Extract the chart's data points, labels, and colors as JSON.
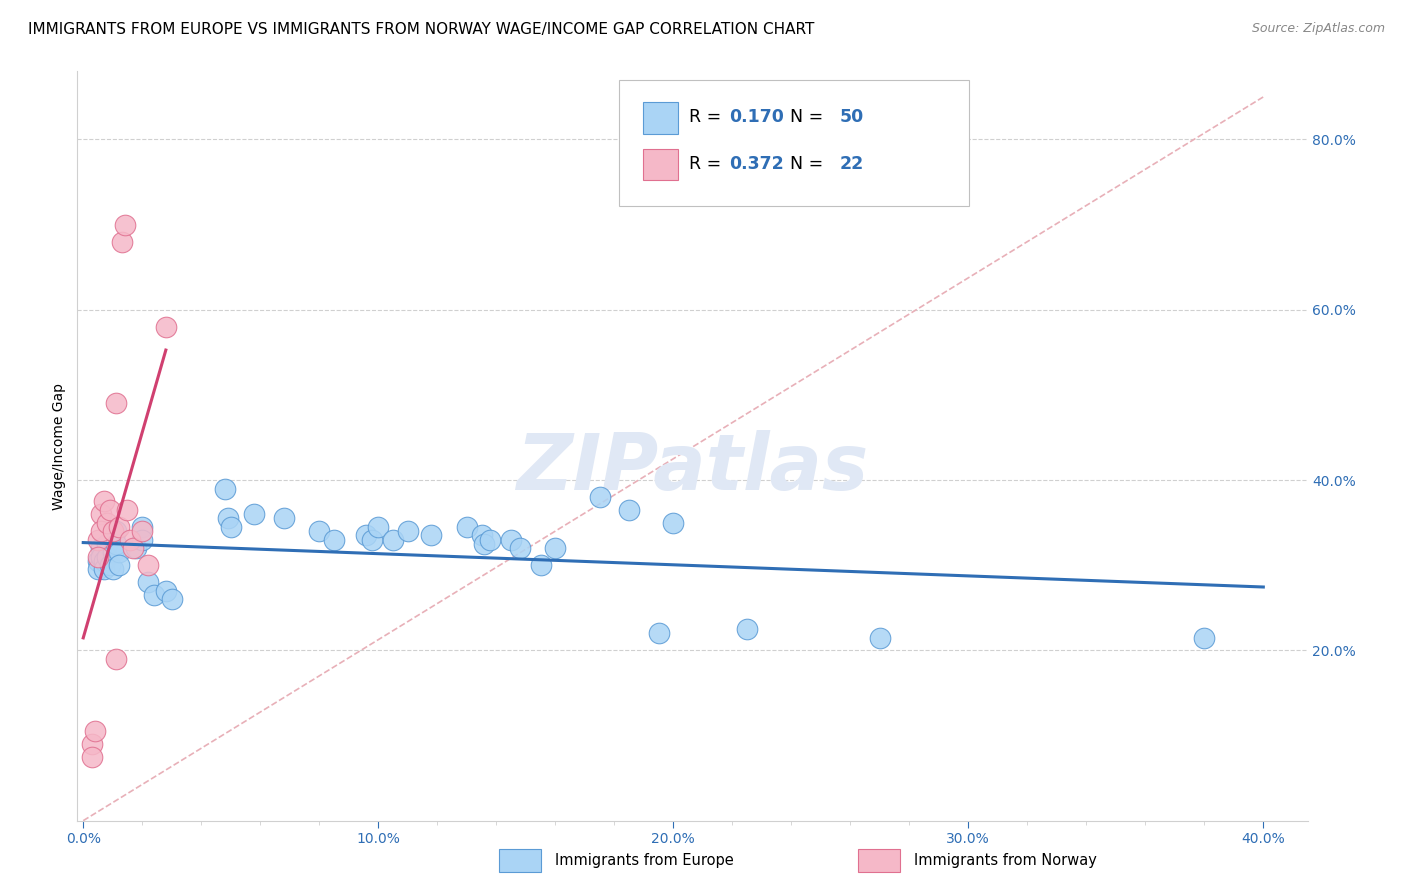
{
  "title": "IMMIGRANTS FROM EUROPE VS IMMIGRANTS FROM NORWAY WAGE/INCOME GAP CORRELATION CHART",
  "source": "Source: ZipAtlas.com",
  "ylabel": "Wage/Income Gap",
  "x_tick_labels": [
    "0.0%",
    "",
    "",
    "",
    "",
    "10.0%",
    "",
    "",
    "",
    "",
    "20.0%",
    "",
    "",
    "",
    "",
    "30.0%",
    "",
    "",
    "",
    "",
    "40.0%"
  ],
  "x_tick_values": [
    0.0,
    0.02,
    0.04,
    0.06,
    0.08,
    0.1,
    0.12,
    0.14,
    0.16,
    0.18,
    0.2,
    0.22,
    0.24,
    0.26,
    0.28,
    0.3,
    0.32,
    0.34,
    0.36,
    0.38,
    0.4
  ],
  "y_tick_labels": [
    "80.0%",
    "60.0%",
    "40.0%",
    "20.0%"
  ],
  "y_tick_values": [
    0.8,
    0.6,
    0.4,
    0.2
  ],
  "xlim": [
    -0.002,
    0.415
  ],
  "ylim": [
    0.0,
    0.88
  ],
  "legend_europe": "Immigrants from Europe",
  "legend_norway": "Immigrants from Norway",
  "europe_R": "0.170",
  "europe_N": "50",
  "norway_R": "0.372",
  "norway_N": "22",
  "europe_color": "#aad4f5",
  "norway_color": "#f5b8c8",
  "europe_edge_color": "#5b9bd5",
  "norway_edge_color": "#e07090",
  "europe_line_color": "#2f6eb5",
  "norway_line_color": "#d04070",
  "diag_color": "#e8b0b8",
  "grid_color": "#d0d0d0",
  "watermark_color": "#e0e8f5",
  "text_blue": "#2f6eb5",
  "text_pink": "#d04070",
  "watermark": "ZIPatlas",
  "europe_x": [
    0.005,
    0.005,
    0.006,
    0.006,
    0.007,
    0.007,
    0.008,
    0.008,
    0.009,
    0.01,
    0.01,
    0.011,
    0.011,
    0.012,
    0.012,
    0.018,
    0.02,
    0.02,
    0.022,
    0.024,
    0.028,
    0.03,
    0.048,
    0.049,
    0.05,
    0.058,
    0.068,
    0.08,
    0.085,
    0.096,
    0.098,
    0.1,
    0.105,
    0.11,
    0.118,
    0.13,
    0.135,
    0.136,
    0.138,
    0.145,
    0.148,
    0.155,
    0.16,
    0.175,
    0.185,
    0.195,
    0.2,
    0.225,
    0.27,
    0.38
  ],
  "europe_y": [
    0.305,
    0.295,
    0.32,
    0.31,
    0.305,
    0.295,
    0.325,
    0.31,
    0.3,
    0.315,
    0.295,
    0.34,
    0.325,
    0.315,
    0.3,
    0.32,
    0.345,
    0.33,
    0.28,
    0.265,
    0.27,
    0.26,
    0.39,
    0.355,
    0.345,
    0.36,
    0.355,
    0.34,
    0.33,
    0.335,
    0.33,
    0.345,
    0.33,
    0.34,
    0.335,
    0.345,
    0.335,
    0.325,
    0.33,
    0.33,
    0.32,
    0.3,
    0.32,
    0.38,
    0.365,
    0.22,
    0.35,
    0.225,
    0.215,
    0.215
  ],
  "norway_x": [
    0.003,
    0.003,
    0.004,
    0.005,
    0.005,
    0.006,
    0.006,
    0.007,
    0.008,
    0.009,
    0.01,
    0.011,
    0.011,
    0.012,
    0.013,
    0.014,
    0.015,
    0.016,
    0.017,
    0.02,
    0.022,
    0.028
  ],
  "norway_y": [
    0.09,
    0.075,
    0.105,
    0.33,
    0.31,
    0.36,
    0.34,
    0.375,
    0.35,
    0.365,
    0.34,
    0.19,
    0.49,
    0.345,
    0.68,
    0.7,
    0.365,
    0.33,
    0.32,
    0.34,
    0.3,
    0.58
  ],
  "title_fontsize": 11,
  "source_fontsize": 9,
  "axis_label_fontsize": 10,
  "tick_fontsize": 10,
  "legend_fontsize": 12.5
}
